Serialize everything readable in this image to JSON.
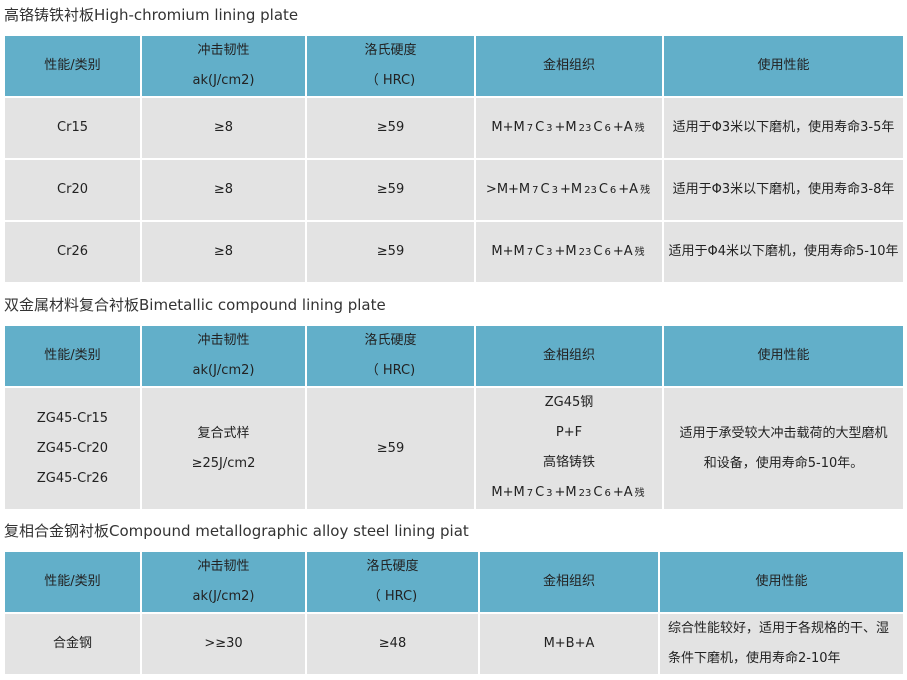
{
  "colors": {
    "header_bg": "#62afc9",
    "cell_bg": "#e3e3e3"
  },
  "tables": [
    {
      "title": "高铬铸铁衬板High-chromium lining plate",
      "headers": [
        "性能/类别",
        "冲击韧性",
        "ak(J/cm2)",
        "洛氏硬度",
        "（ HRC)",
        "金相组织",
        "使用性能"
      ],
      "rows": [
        {
          "type": "Cr15",
          "toughness": "≥8",
          "hardness": "≥59",
          "structure": "M+M7C3+M23C6+A残",
          "use": "适用于Φ3米以下磨机，使用寿命3-5年"
        },
        {
          "type": "Cr20",
          "toughness": "≥8",
          "hardness": "≥59",
          "structure": ">M+M7C3+M23C6+A残",
          "use": "适用于Φ3米以下磨机，使用寿命3-8年"
        },
        {
          "type": "Cr26",
          "toughness": "≥8",
          "hardness": "≥59",
          "structure": "M+M7C3+M23C6+A残",
          "use": "适用于Φ4米以下磨机，使用寿命5-10年"
        }
      ]
    },
    {
      "title": "双金属材料复合衬板Bimetallic compound lining plate",
      "headers": [
        "性能/类别",
        "冲击韧性",
        "ak(J/cm2)",
        "洛氏硬度",
        "（ HRC)",
        "金相组织",
        "使用性能"
      ],
      "rows": [
        {
          "type": [
            "ZG45-Cr15",
            "ZG45-Cr20",
            "ZG45-Cr26"
          ],
          "toughness": [
            "复合式样",
            "≥25J/cm2"
          ],
          "hardness": "≥59",
          "structure": [
            "ZG45钢",
            "P+F",
            "高铬铸铁",
            "M+M7C3+M23C6+A残"
          ],
          "use": "适用于承受较大冲击载荷的大型磨机和设备，使用寿命5-10年。"
        }
      ]
    },
    {
      "title": "复相合金钢衬板Compound metallographic alloy steel lining piat",
      "headers": [
        "性能/类别",
        "冲击韧性",
        "ak(J/cm2)",
        "洛氏硬度",
        "（ HRC)",
        "金相组织",
        "使用性能"
      ],
      "rows": [
        {
          "type": "合金钢",
          "toughness": ">≥30",
          "hardness": "≥48",
          "structure": "M+B+A",
          "use": "综合性能较好，适用于各规格的干、湿条件下磨机，使用寿命2-10年"
        }
      ]
    }
  ]
}
